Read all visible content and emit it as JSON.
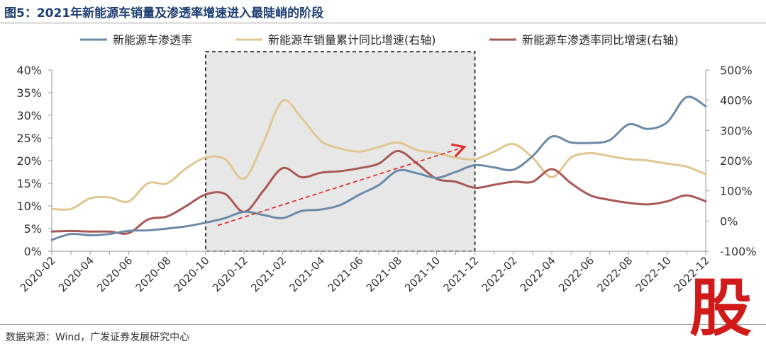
{
  "header": {
    "title": "图5：2021年新能源车销量及渗透率增速进入最陡峭的阶段"
  },
  "footer": {
    "source": "数据来源：Wind，广发证券发展研究中心"
  },
  "watermark": {
    "char": "股"
  },
  "chart_data": {
    "type": "line",
    "title": "图5：2021年新能源车销量及渗透率增速进入最陡峭的阶段",
    "categories": [
      "2020-02",
      "2020-04",
      "2020-06",
      "2020-08",
      "2020-10",
      "2020-12",
      "2021-02",
      "2021-04",
      "2021-06",
      "2021-08",
      "2021-10",
      "2021-12",
      "2022-02",
      "2022-04",
      "2022-06",
      "2022-08",
      "2022-10",
      "2022-12"
    ],
    "x": [
      "2020-02",
      "2020-03",
      "2020-04",
      "2020-05",
      "2020-06",
      "2020-07",
      "2020-08",
      "2020-09",
      "2020-10",
      "2020-11",
      "2020-12",
      "2021-01",
      "2021-02",
      "2021-03",
      "2021-04",
      "2021-05",
      "2021-06",
      "2021-07",
      "2021-08",
      "2021-09",
      "2021-10",
      "2021-11",
      "2021-12",
      "2022-01",
      "2022-02",
      "2022-03",
      "2022-04",
      "2022-05",
      "2022-06",
      "2022-07",
      "2022-08",
      "2022-09",
      "2022-10",
      "2022-11",
      "2022-12"
    ],
    "series": [
      {
        "name": "新能源车渗透率",
        "axis": "left",
        "color": "#6b8aa8",
        "values": [
          2.5,
          3.8,
          3.5,
          3.8,
          4.5,
          4.6,
          5.0,
          5.5,
          6.3,
          7.3,
          8.7,
          8.0,
          7.3,
          8.9,
          9.2,
          10.2,
          12.5,
          14.6,
          17.8,
          17.2,
          16.2,
          17.5,
          19.0,
          18.5,
          18.0,
          21.0,
          25.3,
          24.0,
          23.9,
          24.5,
          28.0,
          27.0,
          28.5,
          34.0,
          32.0
        ]
      },
      {
        "name": "新能源车销量累计同比增速(右轴)",
        "axis": "right",
        "color": "#e0c690",
        "values": [
          40,
          40,
          75,
          78,
          65,
          125,
          125,
          175,
          210,
          205,
          140,
          260,
          398,
          340,
          265,
          240,
          230,
          245,
          260,
          235,
          225,
          210,
          205,
          230,
          255,
          210,
          145,
          210,
          225,
          215,
          205,
          200,
          190,
          180,
          155
        ]
      },
      {
        "name": "新能源车渗透率同比增速(右轴)",
        "axis": "right",
        "color": "#a85855",
        "values": [
          -35,
          -33,
          -35,
          -35,
          -40,
          5,
          15,
          50,
          88,
          90,
          30,
          100,
          175,
          145,
          160,
          165,
          175,
          190,
          232,
          190,
          140,
          130,
          110,
          120,
          130,
          130,
          172,
          125,
          85,
          70,
          60,
          55,
          65,
          85,
          65
        ]
      }
    ],
    "left_axis": {
      "min": 0,
      "max": 40,
      "ticks": [
        "0%",
        "5%",
        "10%",
        "15%",
        "20%",
        "25%",
        "30%",
        "35%",
        "40%"
      ]
    },
    "right_axis": {
      "min": -100,
      "max": 500,
      "ticks": [
        "-100%",
        "0%",
        "100%",
        "200%",
        "300%",
        "400%",
        "500%"
      ]
    },
    "highlight": {
      "from": "2020-10",
      "to": "2021-12",
      "note": "dashed box"
    },
    "arrow": {
      "from": {
        "x": "2020-11",
        "y_left": 6
      },
      "to": {
        "x": "2021-11",
        "y_left": 23
      }
    },
    "legend_position": "top",
    "grid": false
  }
}
